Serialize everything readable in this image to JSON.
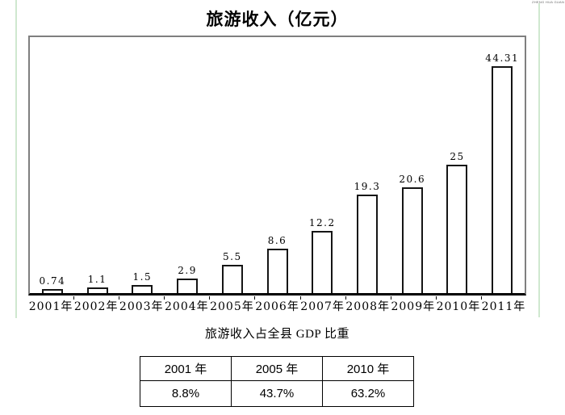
{
  "page": {
    "watermark": "ZHENG HUA GUAN"
  },
  "chart_data": {
    "type": "bar",
    "title": "旅游收入（亿元）",
    "categories": [
      "2001年",
      "2002年",
      "2003年",
      "2004年",
      "2005年",
      "2006年",
      "2007年",
      "2008年",
      "2009年",
      "2010年",
      "2011年"
    ],
    "values": [
      0.74,
      1.1,
      1.5,
      2.9,
      5.5,
      8.6,
      12.2,
      19.3,
      20.6,
      25,
      44.31
    ],
    "labels": [
      "0.74",
      "1.1",
      "1.5",
      "2.9",
      "5.5",
      "8.6",
      "12.2",
      "19.3",
      "20.6",
      "25",
      "44.31"
    ],
    "xlabel": "",
    "ylabel": "",
    "ylim": [
      0,
      50
    ],
    "grid": false,
    "legend": "none",
    "y_axis_ticks_visible": false,
    "bar_fill": "#ffffff",
    "bar_border": "#151515",
    "plot_border": "#7f7f7f"
  },
  "gdp_table": {
    "title": "旅游收入占全县 GDP 比重",
    "headers": [
      "2001 年",
      "2005 年",
      "2010 年"
    ],
    "rows": [
      [
        "8.8%",
        "43.7%",
        "63.2%"
      ]
    ]
  },
  "colors": {
    "artifact_line_green": "#cfe8cf",
    "axis_black": "#000000"
  }
}
